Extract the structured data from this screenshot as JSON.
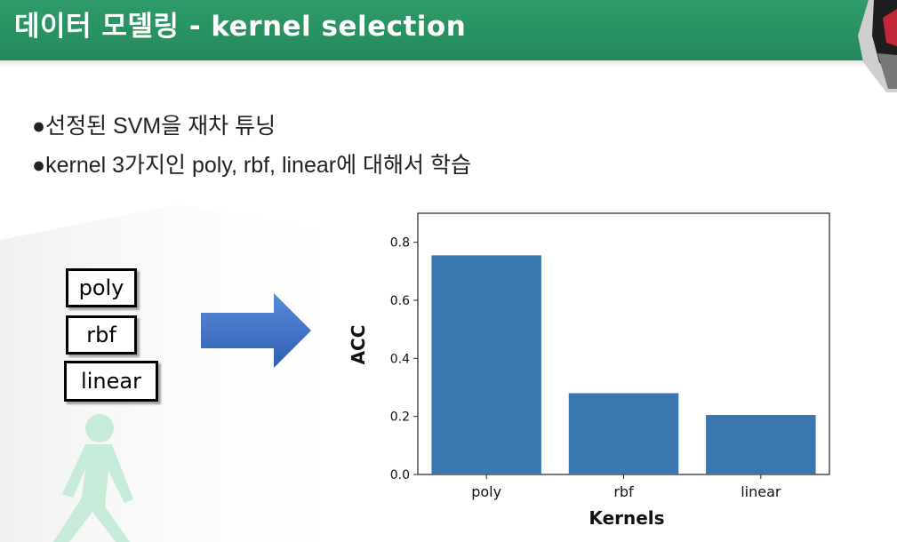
{
  "header": {
    "title": "데이터 모델링 - kernel selection"
  },
  "bullets": [
    "●선정된 SVM을 재차 튜닝",
    "●kernel 3가지인 poly, rbf, linear에 대해서 학습"
  ],
  "kernel_boxes": [
    "poly",
    "rbf",
    "linear"
  ],
  "colors": {
    "header": "#2a9463",
    "bar": "#3a76af",
    "arrow": "#4472c4"
  },
  "chart_data": {
    "type": "bar",
    "categories": [
      "poly",
      "rbf",
      "linear"
    ],
    "values": [
      0.755,
      0.28,
      0.205
    ],
    "xlabel": "Kernels",
    "ylabel": "ACC",
    "ylim": [
      0,
      0.9
    ],
    "yticks": [
      "0.0",
      "0.2",
      "0.4",
      "0.6",
      "0.8"
    ],
    "grid": false
  }
}
